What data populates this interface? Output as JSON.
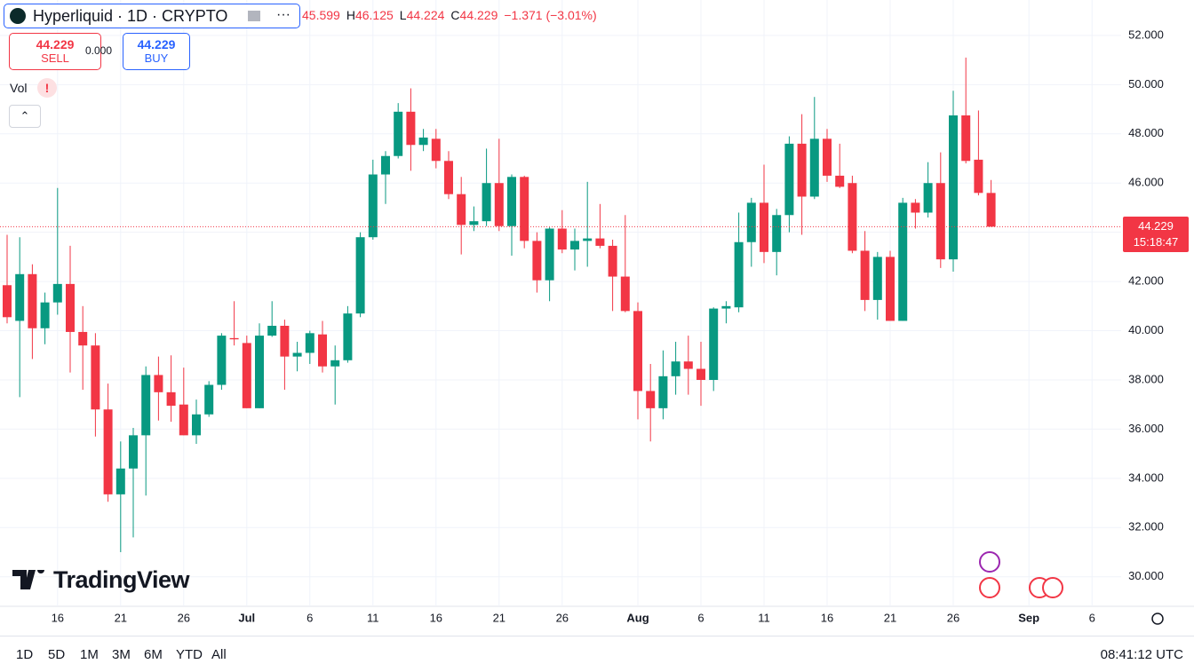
{
  "header": {
    "symbol": "Hyperliquid · 1D · CRYPTO",
    "more": "···",
    "h": "H",
    "l": "L",
    "c": "C",
    "change": "−1.371 (−3.01%)",
    "sell_price": "44.229",
    "sell": "SELL",
    "spread": "0.000",
    "buy_price": "44.229",
    "buy": "BUY",
    "vol": "Vol",
    "vol_alert": "!",
    "watermark": "TradingView"
  },
  "toolbar": {
    "ranges": [
      "1D",
      "5D",
      "1M",
      "3M",
      "6M",
      "YTD",
      "All"
    ],
    "clock": "08:41:12 UTC"
  },
  "chart_data": {
    "type": "candlestick",
    "countdown": "15:18:47",
    "up_color": "#089981",
    "down_color": "#f23645",
    "grid": true,
    "x": [
      "06-12",
      "06-13",
      "06-14",
      "06-15",
      "06-16",
      "06-17",
      "06-18",
      "06-19",
      "06-20",
      "06-21",
      "06-22",
      "06-23",
      "06-24",
      "06-25",
      "06-26",
      "06-27",
      "06-28",
      "06-29",
      "06-30",
      "07-01",
      "07-02",
      "07-03",
      "07-04",
      "07-05",
      "07-06",
      "07-07",
      "07-08",
      "07-09",
      "07-10",
      "07-11",
      "07-12",
      "07-13",
      "07-14",
      "07-15",
      "07-16",
      "07-17",
      "07-18",
      "07-19",
      "07-20",
      "07-21",
      "07-22",
      "07-23",
      "07-24",
      "07-25",
      "07-26",
      "07-27",
      "07-28",
      "07-29",
      "07-30",
      "07-31",
      "08-01",
      "08-02",
      "08-03",
      "08-04",
      "08-05",
      "08-06",
      "08-07",
      "08-08",
      "08-09",
      "08-10",
      "08-11",
      "08-12",
      "08-13",
      "08-14",
      "08-15",
      "08-16",
      "08-17",
      "08-18",
      "08-19",
      "08-20",
      "08-21",
      "08-22",
      "08-23",
      "08-24",
      "08-25",
      "08-26",
      "08-27",
      "08-28",
      "08-29"
    ],
    "open": [
      41.85,
      40.4,
      42.3,
      40.1,
      41.15,
      41.9,
      39.95,
      39.4,
      36.8,
      33.35,
      34.4,
      35.75,
      38.2,
      37.5,
      37.0,
      35.75,
      36.6,
      37.8,
      39.7,
      39.5,
      36.85,
      39.8,
      40.2,
      38.95,
      39.1,
      39.85,
      38.55,
      38.8,
      40.7,
      43.8,
      46.35,
      47.1,
      48.9,
      47.55,
      47.8,
      46.9,
      45.55,
      44.3,
      44.45,
      46.0,
      44.25,
      46.25,
      43.65,
      42.05,
      44.15,
      43.3,
      43.65,
      43.75,
      43.45,
      42.2,
      40.8,
      37.55,
      36.85,
      38.15,
      38.75,
      38.45,
      38.0,
      40.9,
      40.95,
      43.6,
      45.2,
      43.2,
      44.7,
      47.6,
      45.45,
      47.8,
      46.3,
      46.0,
      43.25,
      41.25,
      43.0,
      40.4,
      45.2,
      44.8,
      46.0,
      42.9,
      48.75,
      46.95,
      45.599
    ],
    "high": [
      43.9,
      43.8,
      42.7,
      41.55,
      45.8,
      43.45,
      41.0,
      39.9,
      37.85,
      35.5,
      36.05,
      38.55,
      38.95,
      39.0,
      38.5,
      37.2,
      37.95,
      39.9,
      41.2,
      39.8,
      40.3,
      41.2,
      40.45,
      39.55,
      40.0,
      40.4,
      39.4,
      41.0,
      44.0,
      46.95,
      47.3,
      49.25,
      49.85,
      48.2,
      48.2,
      47.3,
      46.25,
      45.05,
      47.4,
      47.8,
      46.35,
      46.3,
      44.0,
      44.2,
      44.9,
      44.15,
      46.05,
      45.15,
      43.7,
      44.7,
      41.15,
      38.65,
      39.2,
      39.55,
      39.8,
      39.55,
      40.95,
      41.2,
      44.8,
      45.4,
      46.75,
      44.95,
      47.9,
      48.8,
      49.5,
      48.2,
      47.6,
      46.3,
      44.05,
      43.2,
      43.25,
      45.4,
      45.35,
      46.85,
      47.25,
      49.75,
      51.1,
      48.95,
      46.125
    ],
    "low": [
      40.3,
      37.3,
      38.85,
      39.45,
      40.65,
      38.3,
      37.6,
      35.7,
      33.05,
      31.0,
      31.6,
      33.3,
      36.35,
      36.3,
      35.75,
      35.4,
      36.5,
      37.6,
      39.4,
      36.85,
      36.85,
      39.75,
      37.6,
      38.35,
      38.65,
      38.3,
      37.0,
      38.7,
      40.55,
      43.7,
      45.15,
      47.0,
      46.5,
      47.3,
      46.6,
      45.35,
      43.1,
      44.05,
      44.25,
      44.05,
      43.05,
      43.35,
      41.55,
      41.2,
      43.15,
      42.45,
      42.6,
      43.35,
      40.8,
      40.75,
      36.4,
      35.5,
      36.4,
      37.4,
      37.4,
      36.95,
      37.55,
      40.3,
      40.75,
      42.6,
      42.75,
      42.25,
      44.0,
      43.9,
      45.35,
      46.05,
      45.8,
      43.15,
      40.8,
      40.45,
      40.4,
      40.4,
      44.15,
      44.6,
      42.55,
      42.4,
      46.8,
      45.5,
      44.224
    ],
    "close": [
      40.55,
      42.3,
      40.1,
      41.15,
      41.9,
      39.95,
      39.4,
      36.8,
      33.35,
      34.4,
      35.75,
      38.2,
      37.5,
      36.95,
      35.75,
      36.6,
      37.8,
      39.8,
      39.65,
      36.85,
      39.8,
      40.2,
      38.95,
      39.1,
      39.9,
      38.55,
      38.8,
      40.7,
      43.8,
      46.35,
      47.1,
      48.9,
      47.55,
      47.85,
      46.9,
      45.55,
      44.3,
      44.45,
      46.0,
      44.25,
      46.25,
      43.65,
      42.05,
      44.15,
      43.3,
      43.65,
      43.75,
      43.45,
      42.2,
      40.8,
      37.55,
      36.85,
      38.15,
      38.75,
      38.45,
      38.0,
      40.9,
      41.0,
      43.6,
      45.2,
      43.2,
      44.7,
      47.6,
      45.45,
      47.8,
      46.3,
      45.85,
      43.25,
      41.25,
      43.0,
      40.4,
      45.2,
      44.8,
      46.0,
      42.9,
      48.75,
      46.9,
      45.6,
      44.229
    ],
    "ylim": [
      28.8,
      53.44
    ],
    "yticks": [
      {
        "value": 30,
        "label": "30.000"
      },
      {
        "value": 32,
        "label": "32.000"
      },
      {
        "value": 34,
        "label": "34.000"
      },
      {
        "value": 36,
        "label": "36.000"
      },
      {
        "value": 38,
        "label": "38.000"
      },
      {
        "value": 40,
        "label": "40.000"
      },
      {
        "value": 42,
        "label": "42.000"
      },
      {
        "value": 44,
        "label": "44.000"
      },
      {
        "value": 46,
        "label": "46.000"
      },
      {
        "value": 48,
        "label": "48.000"
      },
      {
        "value": 50,
        "label": "50.000"
      },
      {
        "value": 52,
        "label": "52.000"
      }
    ],
    "xticks": [
      {
        "value": "06-16",
        "label": "16"
      },
      {
        "value": "06-21",
        "label": "21"
      },
      {
        "value": "06-26",
        "label": "26"
      },
      {
        "value": "07-01",
        "label": "Jul"
      },
      {
        "value": "07-06",
        "label": "6"
      },
      {
        "value": "07-11",
        "label": "11"
      },
      {
        "value": "07-16",
        "label": "16"
      },
      {
        "value": "07-21",
        "label": "21"
      },
      {
        "value": "07-26",
        "label": "26"
      },
      {
        "value": "08-01",
        "label": "Aug"
      },
      {
        "value": "08-06",
        "label": "6"
      },
      {
        "value": "08-11",
        "label": "11"
      },
      {
        "value": "08-16",
        "label": "16"
      },
      {
        "value": "08-21",
        "label": "21"
      },
      {
        "value": "08-26",
        "label": "26"
      },
      {
        "value": "09-01",
        "label": "Sep"
      },
      {
        "value": "09-06",
        "label": "6"
      }
    ]
  }
}
